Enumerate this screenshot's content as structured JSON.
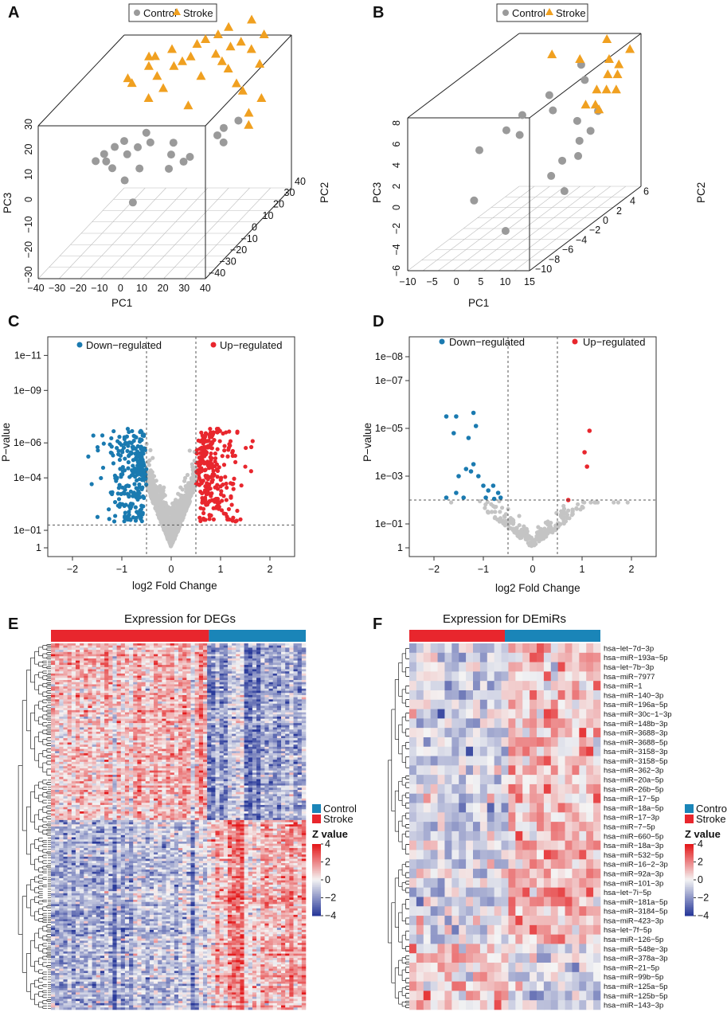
{
  "colors": {
    "control_point": "#9a9a9a",
    "stroke_point": "#f0a020",
    "down": "#1a7ab0",
    "up": "#e8262d",
    "nonsig": "#c4c4c4",
    "control_bar": "#1a85b8",
    "stroke_bar": "#e8262d",
    "heat_low": "#2a3a9a",
    "heat_mid": "#f4f4f4",
    "heat_high": "#e41a1c"
  },
  "panels": {
    "A": {
      "letter": "A",
      "legend": [
        "Control",
        "Stroke"
      ],
      "chart_data": {
        "type": "scatter",
        "projection": "3d",
        "axes": {
          "PC1": [
            -40,
            40
          ],
          "PC2": [
            -40,
            40
          ],
          "PC3": [
            -30,
            30
          ]
        },
        "axis_labels": {
          "x": "PC1",
          "y": "PC2",
          "z": "PC3"
        },
        "pc1_ticks": [
          "−40",
          "−30",
          "−20",
          "−10",
          "0",
          "10",
          "20",
          "30",
          "40"
        ],
        "pc2_ticks": [
          "−40",
          "−30",
          "−20",
          "−10",
          "0",
          "10",
          "20",
          "30",
          "40"
        ],
        "pc3_ticks": [
          "−30",
          "−20",
          "−10",
          "0",
          "10",
          "20",
          "30"
        ],
        "series": [
          {
            "name": "Control",
            "points": [
              [
                -30,
                -6,
                1
              ],
              [
                -28,
                -2,
                2
              ],
              [
                -25,
                2,
                3
              ],
              [
                -22,
                5,
                4
              ],
              [
                -20,
                -10,
                0
              ],
              [
                -18,
                0,
                1
              ],
              [
                -15,
                4,
                2
              ],
              [
                -12,
                -14,
                -3
              ],
              [
                -10,
                6,
                3
              ],
              [
                -5,
                -20,
                -9
              ],
              [
                0,
                8,
                2
              ],
              [
                2,
                2,
                0
              ],
              [
                5,
                -6,
                -2
              ],
              [
                10,
                -2,
                -1
              ],
              [
                12,
                0,
                0
              ],
              [
                20,
                10,
                4
              ],
              [
                22,
                12,
                6
              ],
              [
                25,
                6,
                3
              ],
              [
                28,
                14,
                8
              ],
              [
                -26,
                -4,
                0
              ],
              [
                -14,
                10,
                5
              ],
              [
                -8,
                -8,
                -1
              ]
            ]
          },
          {
            "name": "Stroke",
            "points": [
              [
                -28,
                20,
                22
              ],
              [
                -25,
                18,
                21
              ],
              [
                -20,
                24,
                25
              ],
              [
                -18,
                26,
                28
              ],
              [
                -15,
                22,
                22
              ],
              [
                -12,
                30,
                29
              ],
              [
                -10,
                18,
                19
              ],
              [
                -8,
                24,
                25
              ],
              [
                -5,
                26,
                26
              ],
              [
                -2,
                28,
                27
              ],
              [
                0,
                30,
                31
              ],
              [
                3,
                32,
                32
              ],
              [
                6,
                22,
                22
              ],
              [
                8,
                34,
                33
              ],
              [
                10,
                28,
                28
              ],
              [
                12,
                36,
                35
              ],
              [
                14,
                26,
                26
              ],
              [
                16,
                30,
                30
              ],
              [
                18,
                24,
                24
              ],
              [
                20,
                32,
                31
              ],
              [
                22,
                38,
                37
              ],
              [
                24,
                20,
                20
              ],
              [
                26,
                30,
                29
              ],
              [
                28,
                18,
                18
              ],
              [
                30,
                34,
                33
              ],
              [
                32,
                26,
                25
              ],
              [
                34,
                12,
                12
              ],
              [
                36,
                8,
                9
              ],
              [
                38,
                16,
                16
              ],
              [
                -22,
                28,
                27
              ],
              [
                -16,
                16,
                16
              ],
              [
                4,
                14,
                14
              ]
            ]
          }
        ]
      }
    },
    "B": {
      "letter": "B",
      "legend": [
        "Control",
        "Stroke"
      ],
      "chart_data": {
        "type": "scatter",
        "projection": "3d",
        "axes": {
          "PC1": [
            -10,
            15
          ],
          "PC2": [
            -12,
            6
          ],
          "PC3": [
            -6,
            8
          ]
        },
        "axis_labels": {
          "x": "PC1",
          "y": "PC2",
          "z": "PC3"
        },
        "pc1_ticks": [
          "−10",
          "−5",
          "0",
          "5",
          "10",
          "15"
        ],
        "pc2_ticks": [
          "−10",
          "−8",
          "−6",
          "−4",
          "−2",
          "0",
          "2",
          "4",
          "6"
        ],
        "pc3_ticks": [
          "−6",
          "−4",
          "−2",
          "0",
          "2",
          "4",
          "6",
          "8"
        ],
        "series": [
          {
            "name": "Control",
            "points": [
              [
                -8,
                -2,
                1
              ],
              [
                -5,
                0,
                2
              ],
              [
                -3,
                1,
                3
              ],
              [
                -1,
                -1,
                2
              ],
              [
                0,
                3,
                4
              ],
              [
                2,
                2,
                3
              ],
              [
                4,
                5,
                6
              ],
              [
                6,
                4,
                5
              ],
              [
                8,
                -3,
                -1
              ],
              [
                9,
                -2,
                0
              ],
              [
                10,
                0,
                1
              ],
              [
                11,
                1,
                1.5
              ],
              [
                12,
                -4,
                -2
              ],
              [
                -4,
                -6,
                -2
              ],
              [
                7,
                2,
                2
              ],
              [
                10,
                3,
                2.5
              ],
              [
                11,
                -1,
                0
              ],
              [
                5,
                -8,
                -4
              ]
            ]
          },
          {
            "name": "Stroke",
            "points": [
              [
                -2,
                5,
                7
              ],
              [
                5,
                4,
                7
              ],
              [
                8,
                6,
                8
              ],
              [
                10,
                1,
                4
              ],
              [
                11,
                2,
                5
              ],
              [
                12,
                3,
                6
              ],
              [
                13,
                2,
                5
              ],
              [
                14,
                3,
                6
              ],
              [
                12,
                1,
                4
              ],
              [
                13,
                4,
                6.5
              ],
              [
                14,
                0,
                4
              ],
              [
                15,
                2,
                5
              ],
              [
                11,
                4,
                7
              ],
              [
                14,
                5,
                7.5
              ]
            ]
          }
        ]
      }
    },
    "C": {
      "letter": "C",
      "legend": [
        "Down−regulated",
        "Up−regulated"
      ],
      "chart_data": {
        "type": "scatter",
        "title": "",
        "xlabel": "log2 Fold Change",
        "ylabel": "P−value",
        "xlim": [
          -2.5,
          2.5
        ],
        "ylim_neglog10": [
          0,
          11.5
        ],
        "xticks": [
          "−2",
          "−1",
          "0",
          "1",
          "2"
        ],
        "yticks": [
          "1",
          "1e−01",
          "1e−04",
          "1e−06",
          "1e−09",
          "1e−11"
        ],
        "thresholds": {
          "log2fc": [
            -0.5,
            0.5
          ],
          "p_value": 0.05
        }
      }
    },
    "D": {
      "letter": "D",
      "legend": [
        "Down−regulated",
        "Up−regulated"
      ],
      "chart_data": {
        "type": "scatter",
        "xlabel": "log2 Fold Change",
        "ylabel": "P−value",
        "xlim": [
          -2.5,
          2.5
        ],
        "ylim_neglog10": [
          0,
          8.5
        ],
        "xticks": [
          "−2",
          "−1",
          "0",
          "1",
          "2"
        ],
        "yticks": [
          "1",
          "1e−01",
          "1e−03",
          "1e−05",
          "1e−07",
          "1e−08"
        ],
        "thresholds": {
          "log2fc": [
            -0.5,
            0.5
          ],
          "p_value": 0.01
        },
        "down_points": [
          [
            -1.75,
            5.5
          ],
          [
            -1.55,
            5.5
          ],
          [
            -1.6,
            4.8
          ],
          [
            -1.2,
            5.65
          ],
          [
            -1.15,
            5.1
          ],
          [
            -1.3,
            4.6
          ],
          [
            -1.2,
            3.5
          ],
          [
            -1.35,
            3.3
          ],
          [
            -1.5,
            3.0
          ],
          [
            -1.25,
            3.2
          ],
          [
            -1.1,
            3.0
          ],
          [
            -1.0,
            2.6
          ],
          [
            -0.9,
            2.4
          ],
          [
            -0.8,
            2.6
          ],
          [
            -0.7,
            2.3
          ],
          [
            -0.65,
            2.1
          ],
          [
            -1.55,
            2.3
          ],
          [
            -1.75,
            2.1
          ],
          [
            -1.4,
            2.1
          ],
          [
            -0.95,
            2.1
          ],
          [
            -0.78,
            2.05
          ]
        ],
        "up_points": [
          [
            1.15,
            4.9
          ],
          [
            1.05,
            4.0
          ],
          [
            1.1,
            3.4
          ],
          [
            0.72,
            2.0
          ]
        ]
      }
    },
    "E": {
      "letter": "E",
      "title": "Expression for DEGs",
      "chart_data": {
        "type": "heatmap",
        "title": "Expression for DEGs",
        "groups": [
          "Stroke",
          "Control"
        ],
        "group_fraction_stroke": 0.62,
        "legend_title": "Z value",
        "scale_ticks": [
          "4",
          "2",
          "0",
          "−2",
          "−4"
        ],
        "scale_range": [
          -4,
          4
        ]
      }
    },
    "F": {
      "letter": "F",
      "title": "Expression for DEmiRs",
      "chart_data": {
        "type": "heatmap",
        "title": "Expression for DEmiRs",
        "groups": [
          "Stroke",
          "Control"
        ],
        "group_fraction_stroke": 0.5,
        "legend_title": "Z value",
        "scale_ticks": [
          "4",
          "2",
          "0",
          "−2",
          "−4"
        ],
        "scale_range": [
          -4,
          4
        ],
        "rows": [
          "hsa−let−7d−3p",
          "hsa−miR−193a−5p",
          "hsa−let−7b−3p",
          "hsa−miR−7977",
          "hsa−miR−1",
          "hsa−miR−140−3p",
          "hsa−miR−196a−5p",
          "hsa−miR−30c−1−3p",
          "hsa−miR−148b−3p",
          "hsa−miR−3688−3p",
          "hsa−miR−3688−5p",
          "hsa−miR−3158−3p",
          "hsa−miR−3158−5p",
          "hsa−miR−362−3p",
          "hsa−miR−20a−5p",
          "hsa−miR−26b−5p",
          "hsa−miR−17−5p",
          "hsa−miR−18a−5p",
          "hsa−miR−17−3p",
          "hsa−miR−7−5p",
          "hsa−miR−660−5p",
          "hsa−miR−18a−3p",
          "hsa−miR−532−5p",
          "hsa−miR−16−2−3p",
          "hsa−miR−92a−3p",
          "hsa−miR−101−3p",
          "hsa−let−7i−5p",
          "hsa−miR−181a−5p",
          "hsa−miR−3184−5p",
          "hsa−miR−423−3p",
          "hsa−let−7f−5p",
          "hsa−miR−126−5p",
          "hsa−miR−548e−3p",
          "hsa−miR−378a−3p",
          "hsa−miR−21−5p",
          "hsa−miR−99b−5p",
          "hsa−miR−125a−5p",
          "hsa−miR−125b−5p",
          "hsa−miR−143−3p"
        ]
      }
    },
    "heat_legend": {
      "control": "Control",
      "stroke": "Stroke",
      "ztitle": "Z value"
    }
  }
}
